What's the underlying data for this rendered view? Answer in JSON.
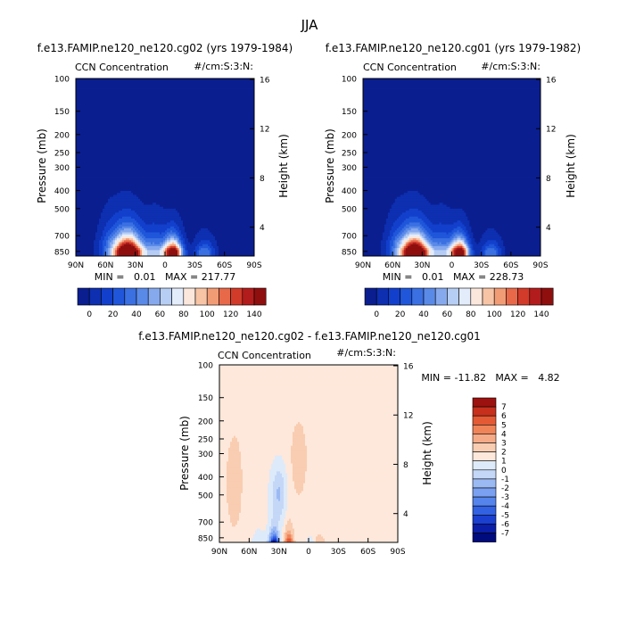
{
  "figure_title": "JJA",
  "colors": {
    "seq_levels": [
      "#0a1e90",
      "#0d2fb0",
      "#1240cc",
      "#1f56da",
      "#3a70e2",
      "#5a8ae8",
      "#86a9ee",
      "#b6cdf4",
      "#e3ecfb",
      "#fbe7dc",
      "#f7c4a6",
      "#f29c76",
      "#e8694a",
      "#d23a2a",
      "#b31c1c",
      "#8f0f0f"
    ],
    "diff_levels": [
      "#000b7d",
      "#0a1ea8",
      "#1b3fcf",
      "#3261e2",
      "#5584ec",
      "#7aa0f1",
      "#9bbaf4",
      "#c4d7f7",
      "#ddeafa",
      "#fde8db",
      "#f9cdb1",
      "#f5ab87",
      "#ef8459",
      "#e35a34",
      "#c7301c",
      "#9c1210"
    ],
    "land_gray": "#ffffff"
  },
  "chart_data": [
    {
      "type": "heatmap",
      "subtitle": "f.e13.FAMIP.ne120_ne120.cg02 (yrs 1979-1984)",
      "left_label": "CCN Concentration",
      "right_label": "#/cm:S:3:N:",
      "stats": "MIN =   0.01   MAX = 217.77",
      "ylabel": "Pressure (mb)",
      "y2label": "Height (km)",
      "yticks": [
        "100",
        "150",
        "200",
        "250",
        "300",
        "400",
        "500",
        "700",
        "850"
      ],
      "y2ticks": [
        "16",
        "12",
        "8",
        "4"
      ],
      "xticks": [
        "90N",
        "60N",
        "30N",
        "0",
        "30S",
        "60S",
        "90S"
      ],
      "colorbar_labels": [
        "0",
        "20",
        "40",
        "60",
        "80",
        "100",
        "120",
        "140"
      ],
      "max": 217.77,
      "min": 0.01
    },
    {
      "type": "heatmap",
      "subtitle": "f.e13.FAMIP.ne120_ne120.cg01 (yrs 1979-1982)",
      "left_label": "CCN Concentration",
      "right_label": "#/cm:S:3:N:",
      "stats": "MIN =   0.01   MAX = 228.73",
      "ylabel": "Pressure (mb)",
      "y2label": "Height (km)",
      "yticks": [
        "100",
        "150",
        "200",
        "250",
        "300",
        "400",
        "500",
        "700",
        "850"
      ],
      "y2ticks": [
        "16",
        "12",
        "8",
        "4"
      ],
      "xticks": [
        "90N",
        "60N",
        "30N",
        "0",
        "30S",
        "60S",
        "90S"
      ],
      "colorbar_labels": [
        "0",
        "20",
        "40",
        "60",
        "80",
        "100",
        "120",
        "140"
      ],
      "max": 228.73,
      "min": 0.01
    },
    {
      "type": "heatmap",
      "subtitle": "f.e13.FAMIP.ne120_ne120.cg02 - f.e13.FAMIP.ne120_ne120.cg01",
      "left_label": "CCN Concentration",
      "right_label": "#/cm:S:3:N:",
      "stats": "MIN = -11.82   MAX =   4.82",
      "ylabel": "Pressure (mb)",
      "y2label": "Height (km)",
      "yticks": [
        "100",
        "150",
        "200",
        "250",
        "300",
        "400",
        "500",
        "700",
        "850"
      ],
      "y2ticks": [
        "16",
        "12",
        "8",
        "4"
      ],
      "xticks": [
        "90N",
        "60N",
        "30N",
        "0",
        "30S",
        "60S",
        "90S"
      ],
      "colorbar_labels": [
        "7",
        "6",
        "5",
        "4",
        "3",
        "2",
        "1",
        "0",
        "-1",
        "-2",
        "-3",
        "-4",
        "-5",
        "-6",
        "-7"
      ],
      "max": 4.82,
      "min": -11.82
    }
  ]
}
